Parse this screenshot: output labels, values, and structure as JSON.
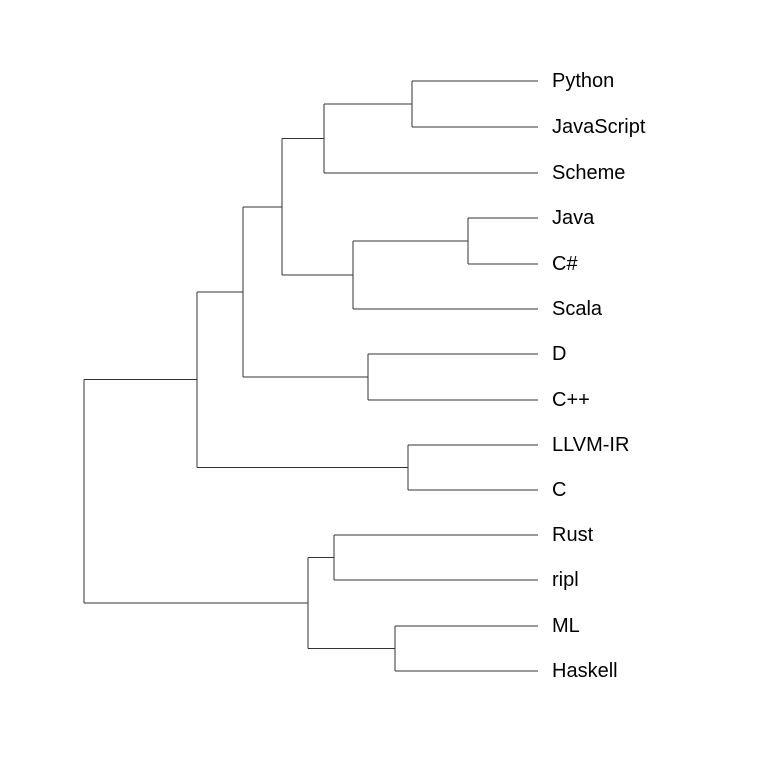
{
  "diagram": {
    "type": "dendrogram",
    "orientation": "left-to-right",
    "line_color": "#333333",
    "leaves": [
      {
        "id": "python",
        "label": "Python"
      },
      {
        "id": "javascript",
        "label": "JavaScript"
      },
      {
        "id": "scheme",
        "label": "Scheme"
      },
      {
        "id": "java",
        "label": "Java"
      },
      {
        "id": "csharp",
        "label": "C#"
      },
      {
        "id": "scala",
        "label": "Scala"
      },
      {
        "id": "d",
        "label": "D"
      },
      {
        "id": "cpp",
        "label": "C++"
      },
      {
        "id": "llvm-ir",
        "label": "LLVM-IR"
      },
      {
        "id": "c",
        "label": "C"
      },
      {
        "id": "rust",
        "label": "Rust"
      },
      {
        "id": "ripl",
        "label": "ripl"
      },
      {
        "id": "ml",
        "label": "ML"
      },
      {
        "id": "haskell",
        "label": "Haskell"
      }
    ],
    "clusters": [
      [
        "python",
        "javascript"
      ],
      [
        [
          "python",
          "javascript"
        ],
        "scheme"
      ],
      [
        "java",
        "csharp"
      ],
      [
        [
          "java",
          "csharp"
        ],
        "scala"
      ],
      [
        [
          [
            "python",
            "javascript"
          ],
          "scheme"
        ],
        [
          [
            "java",
            "csharp"
          ],
          "scala"
        ]
      ],
      [
        "d",
        "cpp"
      ],
      [
        [
          [
            [
              "python",
              "javascript"
            ],
            "scheme"
          ],
          [
            [
              "java",
              "csharp"
            ],
            "scala"
          ]
        ],
        [
          "d",
          "cpp"
        ]
      ],
      [
        "llvm-ir",
        "c"
      ],
      [
        [
          [
            [
              [
                "python",
                "javascript"
              ],
              "scheme"
            ],
            [
              [
                "java",
                "csharp"
              ],
              "scala"
            ]
          ],
          [
            "d",
            "cpp"
          ]
        ],
        [
          "llvm-ir",
          "c"
        ]
      ],
      [
        "rust",
        "ripl"
      ],
      [
        "ml",
        "haskell"
      ],
      [
        [
          "rust",
          "ripl"
        ],
        [
          "ml",
          "haskell"
        ]
      ]
    ]
  }
}
